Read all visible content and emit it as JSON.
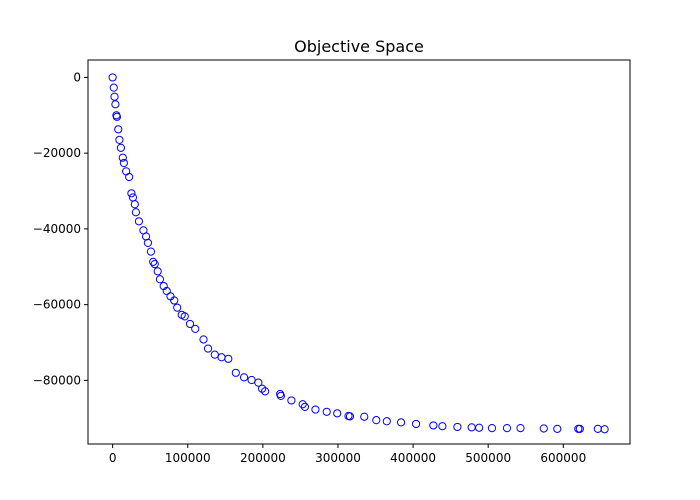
{
  "chart_data": {
    "type": "scatter",
    "title": "Objective Space",
    "xlabel": "",
    "ylabel": "",
    "xlim": [
      -32800,
      688800
    ],
    "ylim": [
      -96800,
      4600
    ],
    "x_ticks": [
      0,
      100000,
      200000,
      300000,
      400000,
      500000,
      600000
    ],
    "x_tick_labels": [
      "0",
      "100000",
      "200000",
      "300000",
      "400000",
      "500000",
      "600000"
    ],
    "y_ticks": [
      0,
      -20000,
      -40000,
      -60000,
      -80000
    ],
    "y_tick_labels": [
      "0",
      "−20000",
      "−40000",
      "−60000",
      "−80000"
    ],
    "grid": false,
    "legend": "none",
    "marker": "hollow circle",
    "marker_color": "#0000ff",
    "series": [
      {
        "points": [
          [
            0,
            0
          ],
          [
            1500,
            -2700
          ],
          [
            2500,
            -5100
          ],
          [
            3700,
            -7100
          ],
          [
            5000,
            -10000
          ],
          [
            5700,
            -10400
          ],
          [
            7500,
            -13700
          ],
          [
            9000,
            -16500
          ],
          [
            11000,
            -18600
          ],
          [
            13500,
            -21200
          ],
          [
            15000,
            -22600
          ],
          [
            18000,
            -24800
          ],
          [
            22000,
            -26300
          ],
          [
            25000,
            -30600
          ],
          [
            27000,
            -31700
          ],
          [
            29500,
            -33500
          ],
          [
            31000,
            -35600
          ],
          [
            35000,
            -38000
          ],
          [
            41000,
            -40400
          ],
          [
            44500,
            -42000
          ],
          [
            47000,
            -43700
          ],
          [
            51000,
            -46000
          ],
          [
            54000,
            -48700
          ],
          [
            56000,
            -49300
          ],
          [
            60000,
            -51200
          ],
          [
            63000,
            -53300
          ],
          [
            68000,
            -55100
          ],
          [
            72000,
            -56400
          ],
          [
            77000,
            -57800
          ],
          [
            82000,
            -58900
          ],
          [
            86000,
            -60800
          ],
          [
            92000,
            -62700
          ],
          [
            96000,
            -63100
          ],
          [
            103000,
            -65100
          ],
          [
            110000,
            -66400
          ],
          [
            121000,
            -69200
          ],
          [
            127000,
            -71600
          ],
          [
            136000,
            -73200
          ],
          [
            145000,
            -73900
          ],
          [
            154000,
            -74300
          ],
          [
            164000,
            -78000
          ],
          [
            175000,
            -79200
          ],
          [
            185000,
            -79900
          ],
          [
            194000,
            -80600
          ],
          [
            199000,
            -82200
          ],
          [
            203000,
            -82900
          ],
          [
            223000,
            -83600
          ],
          [
            224000,
            -84100
          ],
          [
            238000,
            -85300
          ],
          [
            253000,
            -86300
          ],
          [
            256000,
            -87000
          ],
          [
            270000,
            -87700
          ],
          [
            285000,
            -88300
          ],
          [
            299000,
            -88700
          ],
          [
            314000,
            -89400
          ],
          [
            316000,
            -89500
          ],
          [
            335000,
            -89600
          ],
          [
            351000,
            -90500
          ],
          [
            365000,
            -90800
          ],
          [
            384000,
            -91100
          ],
          [
            404000,
            -91500
          ],
          [
            427000,
            -91900
          ],
          [
            439000,
            -92100
          ],
          [
            459000,
            -92300
          ],
          [
            478000,
            -92400
          ],
          [
            488000,
            -92500
          ],
          [
            505000,
            -92600
          ],
          [
            525000,
            -92600
          ],
          [
            543000,
            -92600
          ],
          [
            574000,
            -92700
          ],
          [
            592000,
            -92800
          ],
          [
            620000,
            -92800
          ],
          [
            622000,
            -92800
          ],
          [
            646000,
            -92800
          ],
          [
            655000,
            -92900
          ]
        ]
      }
    ]
  }
}
